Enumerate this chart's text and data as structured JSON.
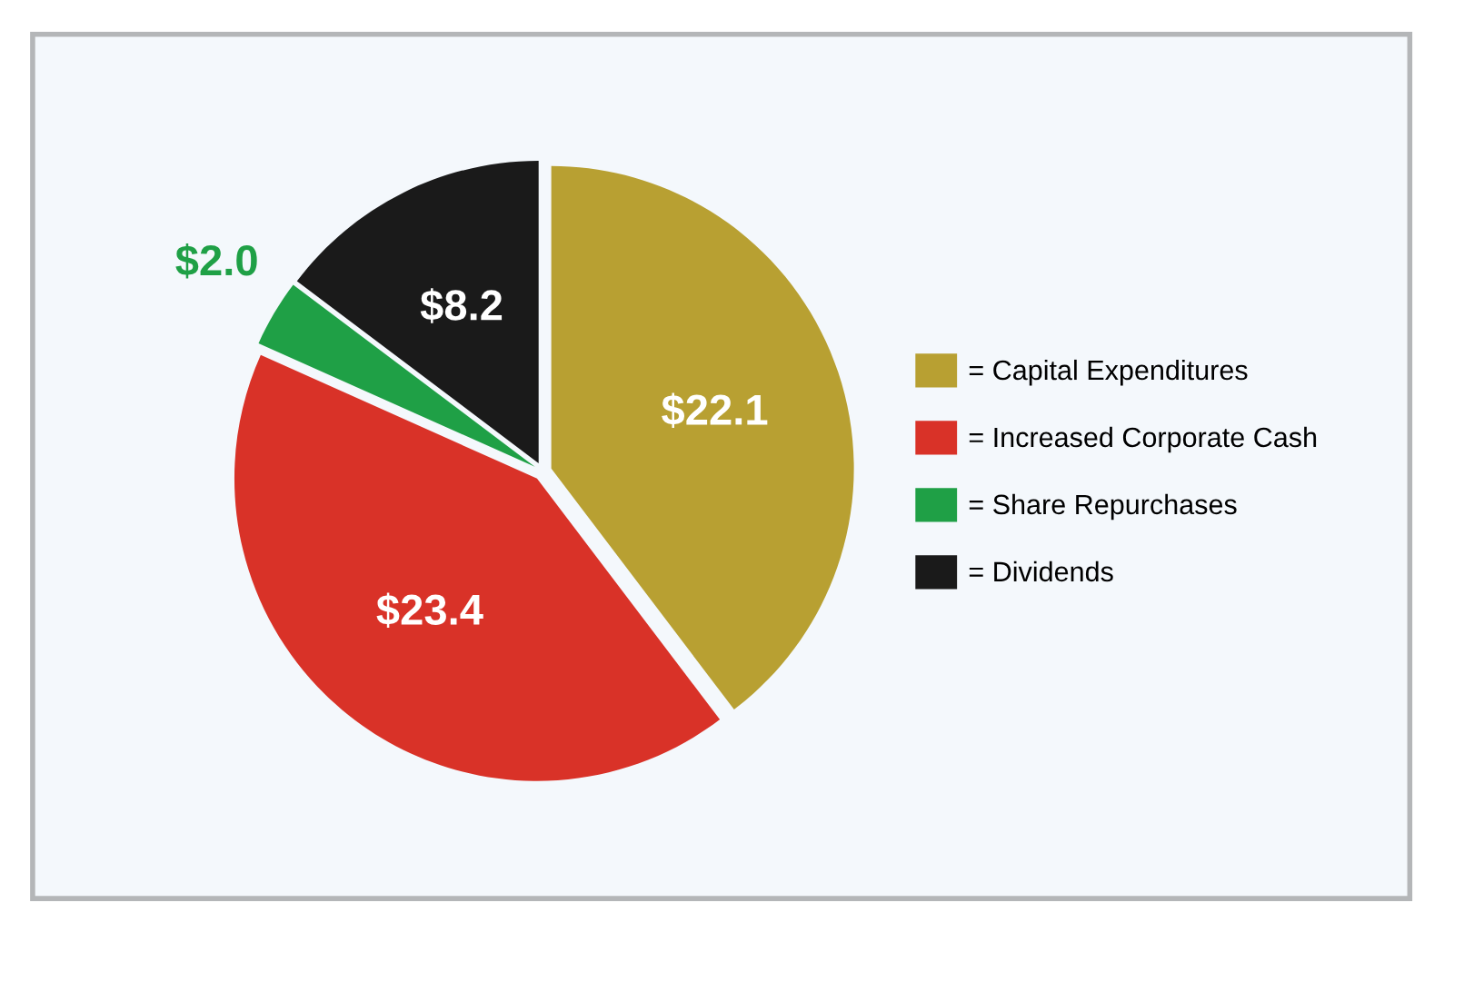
{
  "chart_data": {
    "type": "pie",
    "categories": [
      "= Capital Expenditures",
      "= Increased Corporate Cash",
      "= Share Repurchases",
      "= Dividends"
    ],
    "values": [
      22.1,
      23.4,
      2.0,
      8.2
    ],
    "value_labels": [
      "$22.1",
      "$23.4",
      "$2.0",
      "$8.2"
    ],
    "colors": [
      "#b8a032",
      "#d93228",
      "#1fa046",
      "#1a1a1a"
    ],
    "legend": "right"
  }
}
